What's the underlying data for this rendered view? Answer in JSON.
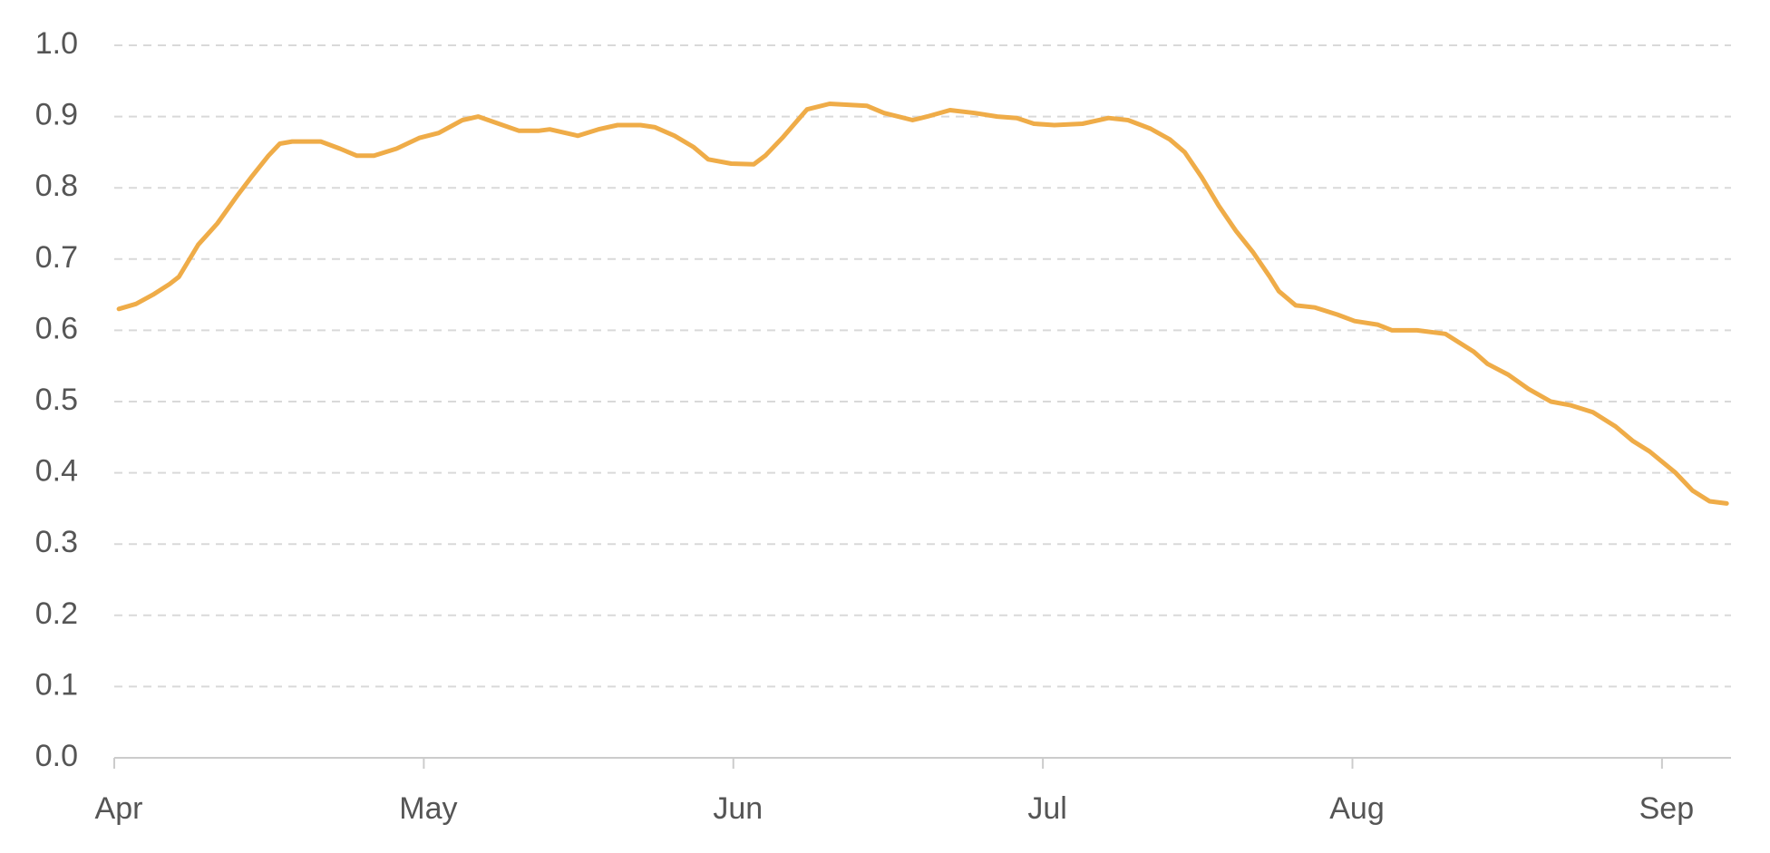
{
  "chart_data": {
    "type": "line",
    "x": [
      0.015,
      0.07,
      0.125,
      0.179,
      0.209,
      0.271,
      0.333,
      0.399,
      0.443,
      0.498,
      0.535,
      0.575,
      0.667,
      0.729,
      0.784,
      0.839,
      0.912,
      0.985,
      1.048,
      1.125,
      1.176,
      1.242,
      1.308,
      1.37,
      1.407,
      1.498,
      1.564,
      1.626,
      1.7,
      1.747,
      1.81,
      1.872,
      1.919,
      1.993,
      2.066,
      2.103,
      2.158,
      2.238,
      2.311,
      2.432,
      2.487,
      2.579,
      2.626,
      2.7,
      2.78,
      2.853,
      2.916,
      2.971,
      3.037,
      3.128,
      3.212,
      3.275,
      3.348,
      3.41,
      3.458,
      3.513,
      3.568,
      3.623,
      3.678,
      3.733,
      3.762,
      3.817,
      3.879,
      3.952,
      4.007,
      4.081,
      4.128,
      4.209,
      4.3,
      4.392,
      4.436,
      4.502,
      4.568,
      4.641,
      4.703,
      4.777,
      4.85,
      4.905,
      4.96,
      5.044,
      5.099,
      5.154,
      5.209
    ],
    "series": [
      {
        "color": "#efac48",
        "values": [
          0.63,
          0.637,
          0.65,
          0.665,
          0.675,
          0.72,
          0.75,
          0.79,
          0.815,
          0.845,
          0.862,
          0.865,
          0.865,
          0.855,
          0.845,
          0.845,
          0.855,
          0.87,
          0.877,
          0.895,
          0.9,
          0.89,
          0.88,
          0.88,
          0.882,
          0.873,
          0.882,
          0.888,
          0.888,
          0.885,
          0.873,
          0.857,
          0.84,
          0.834,
          0.833,
          0.845,
          0.87,
          0.91,
          0.918,
          0.915,
          0.905,
          0.895,
          0.9,
          0.909,
          0.905,
          0.9,
          0.898,
          0.89,
          0.888,
          0.89,
          0.898,
          0.895,
          0.883,
          0.868,
          0.85,
          0.815,
          0.775,
          0.74,
          0.71,
          0.675,
          0.655,
          0.635,
          0.632,
          0.622,
          0.613,
          0.608,
          0.6,
          0.6,
          0.595,
          0.57,
          0.553,
          0.538,
          0.518,
          0.5,
          0.495,
          0.485,
          0.465,
          0.445,
          0.43,
          0.4,
          0.375,
          0.36,
          0.357
        ]
      }
    ],
    "xlim": [
      0,
      5.223
    ],
    "xticks": [
      {
        "value": 0,
        "label": "Apr"
      },
      {
        "value": 1,
        "label": "May"
      },
      {
        "value": 2,
        "label": "Jun"
      },
      {
        "value": 3,
        "label": "Jul"
      },
      {
        "value": 4,
        "label": "Aug"
      },
      {
        "value": 5,
        "label": "Sep"
      }
    ],
    "ylim": [
      0,
      1
    ],
    "yticks": [
      {
        "value": 0,
        "label": "0.0"
      },
      0.1,
      0.2,
      0.3,
      0.4,
      0.5,
      0.6,
      0.7,
      0.8,
      0.9,
      {
        "value": 1,
        "label": "1.0"
      }
    ],
    "grid": true
  }
}
